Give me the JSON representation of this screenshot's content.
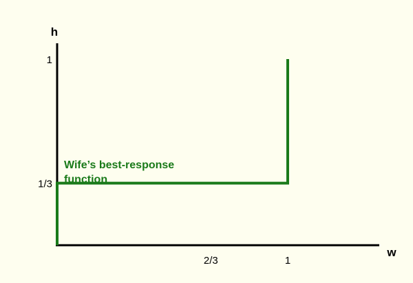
{
  "chart_data": {
    "type": "line",
    "xlabel": "w",
    "ylabel": "h",
    "xlim": [
      0,
      1.5
    ],
    "ylim": [
      0,
      1.1
    ],
    "x_ticks": [
      {
        "value": 0.6667,
        "label": "2/3"
      },
      {
        "value": 1,
        "label": "1"
      }
    ],
    "y_ticks": [
      {
        "value": 0.3333,
        "label": "1/3"
      },
      {
        "value": 1,
        "label": "1"
      }
    ],
    "series": [
      {
        "color": "#1a7a1a",
        "points": [
          {
            "x": 0,
            "y": 0
          },
          {
            "x": 0,
            "y": 0.3333
          },
          {
            "x": 1,
            "y": 0.3333
          },
          {
            "x": 1,
            "y": 1
          }
        ]
      }
    ],
    "annotations": [
      {
        "lines": [
          "Wife’s best-response",
          "function"
        ],
        "color": "#1a7a1a"
      }
    ],
    "grid": false,
    "legend": "none"
  }
}
